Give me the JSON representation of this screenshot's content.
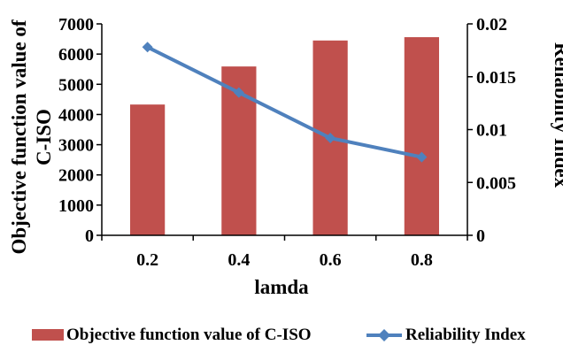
{
  "chart_data": {
    "type": "bar",
    "categories": [
      "0.2",
      "0.4",
      "0.6",
      "0.8"
    ],
    "series": [
      {
        "name": "Objective function value of C-ISO",
        "type": "bar",
        "axis": "left",
        "values": [
          4330,
          5590,
          6450,
          6560
        ]
      },
      {
        "name": "Reliability Index",
        "type": "line",
        "axis": "right",
        "values": [
          0.0178,
          0.0135,
          0.0092,
          0.0074
        ]
      }
    ],
    "xlabel": "lamda",
    "ylabel_lines": [
      "Objective function value of",
      "C-ISO"
    ],
    "y2label": "Reliability Index",
    "ylim": [
      0,
      7000
    ],
    "y_ticks": [
      "0",
      "1000",
      "2000",
      "3000",
      "4000",
      "5000",
      "6000",
      "7000"
    ],
    "y2lim": [
      0,
      0.02
    ],
    "y2_ticks": [
      "0",
      "0.005",
      "0.01",
      "0.015",
      "0.02"
    ],
    "grid": false,
    "legend_position": "bottom",
    "colors": {
      "bar": "#c0504d",
      "line": "#4f81bd",
      "axis": "#000000"
    }
  }
}
